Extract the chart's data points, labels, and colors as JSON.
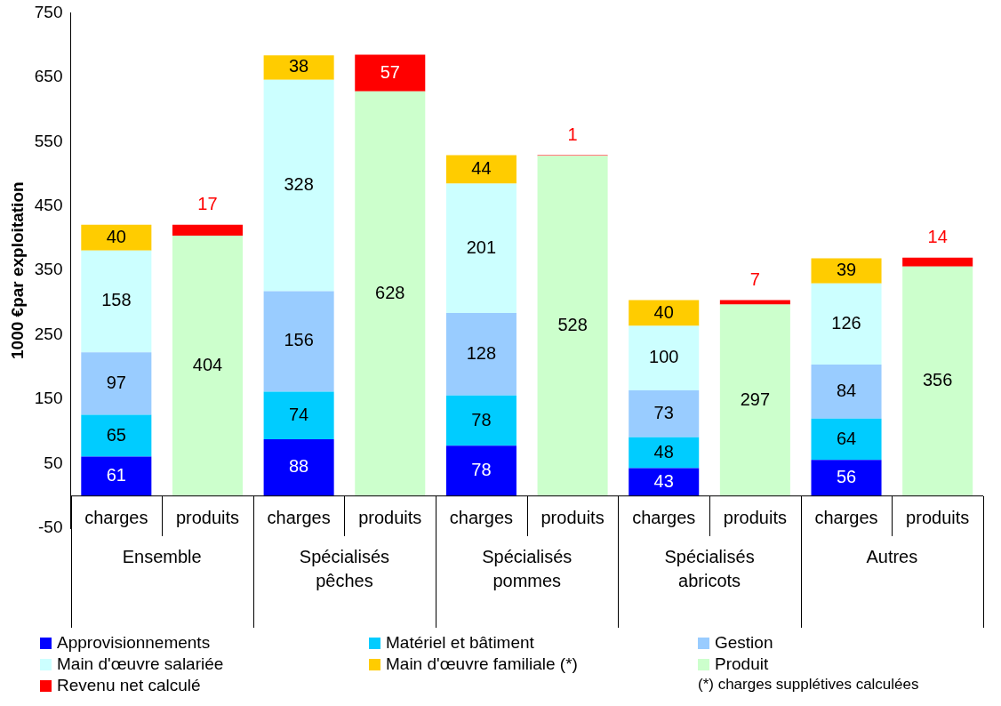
{
  "chart_data": {
    "type": "bar",
    "stacked": true,
    "ylabel": "1000 €par exploitation",
    "categories": [
      "charges",
      "produits",
      "charges",
      "produits",
      "charges",
      "produits",
      "charges",
      "produits",
      "charges",
      "produits"
    ],
    "annotations": [
      "Ensemble",
      "Spécialisés pêches",
      "Spécialisés pommes",
      "Spécialisés abricots",
      "Autres",
      "(*) charges supplétives calculées"
    ],
    "ylim": [
      -50,
      750
    ],
    "yticks": [
      -50,
      50,
      150,
      250,
      350,
      450,
      550,
      650,
      750
    ],
    "grid": false,
    "legend": "bottom",
    "data_labels": true,
    "series": [
      {
        "name": "Approvisionnements",
        "color": "#0000ff",
        "values": [
          61,
          null,
          88,
          null,
          78,
          null,
          43,
          null,
          56,
          null
        ]
      },
      {
        "name": "Matériel et bâtiment",
        "color": "#00ccff",
        "values": [
          65,
          null,
          74,
          null,
          78,
          null,
          48,
          null,
          64,
          null
        ]
      },
      {
        "name": "Gestion",
        "color": "#99ccff",
        "values": [
          97,
          null,
          156,
          null,
          128,
          null,
          73,
          null,
          84,
          null
        ]
      },
      {
        "name": "Main d'œuvre salariée",
        "color": "#ccffff",
        "values": [
          158,
          null,
          328,
          null,
          201,
          null,
          100,
          null,
          126,
          null
        ]
      },
      {
        "name": "Main d'œuvre familiale (*)",
        "color": "#ffcc00",
        "values": [
          40,
          null,
          38,
          null,
          44,
          null,
          40,
          null,
          39,
          null
        ]
      },
      {
        "name": "Produit",
        "color": "#ccffcc",
        "values": [
          null,
          404,
          null,
          628,
          null,
          528,
          null,
          297,
          null,
          356
        ]
      },
      {
        "name": "Revenu net calculé",
        "color": "#ff0000",
        "values": [
          null,
          17,
          null,
          57,
          null,
          1,
          null,
          7,
          null,
          14
        ]
      }
    ]
  }
}
